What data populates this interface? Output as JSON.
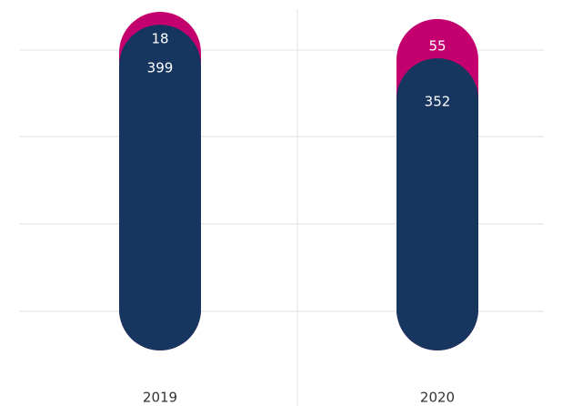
{
  "chart_data": {
    "type": "stacked-bar",
    "categories": [
      "2019",
      "2020"
    ],
    "series": [
      {
        "color": "#17365f",
        "values": [
          399,
          352
        ]
      },
      {
        "color": "#c4006e",
        "values": [
          18,
          55
        ]
      }
    ]
  }
}
